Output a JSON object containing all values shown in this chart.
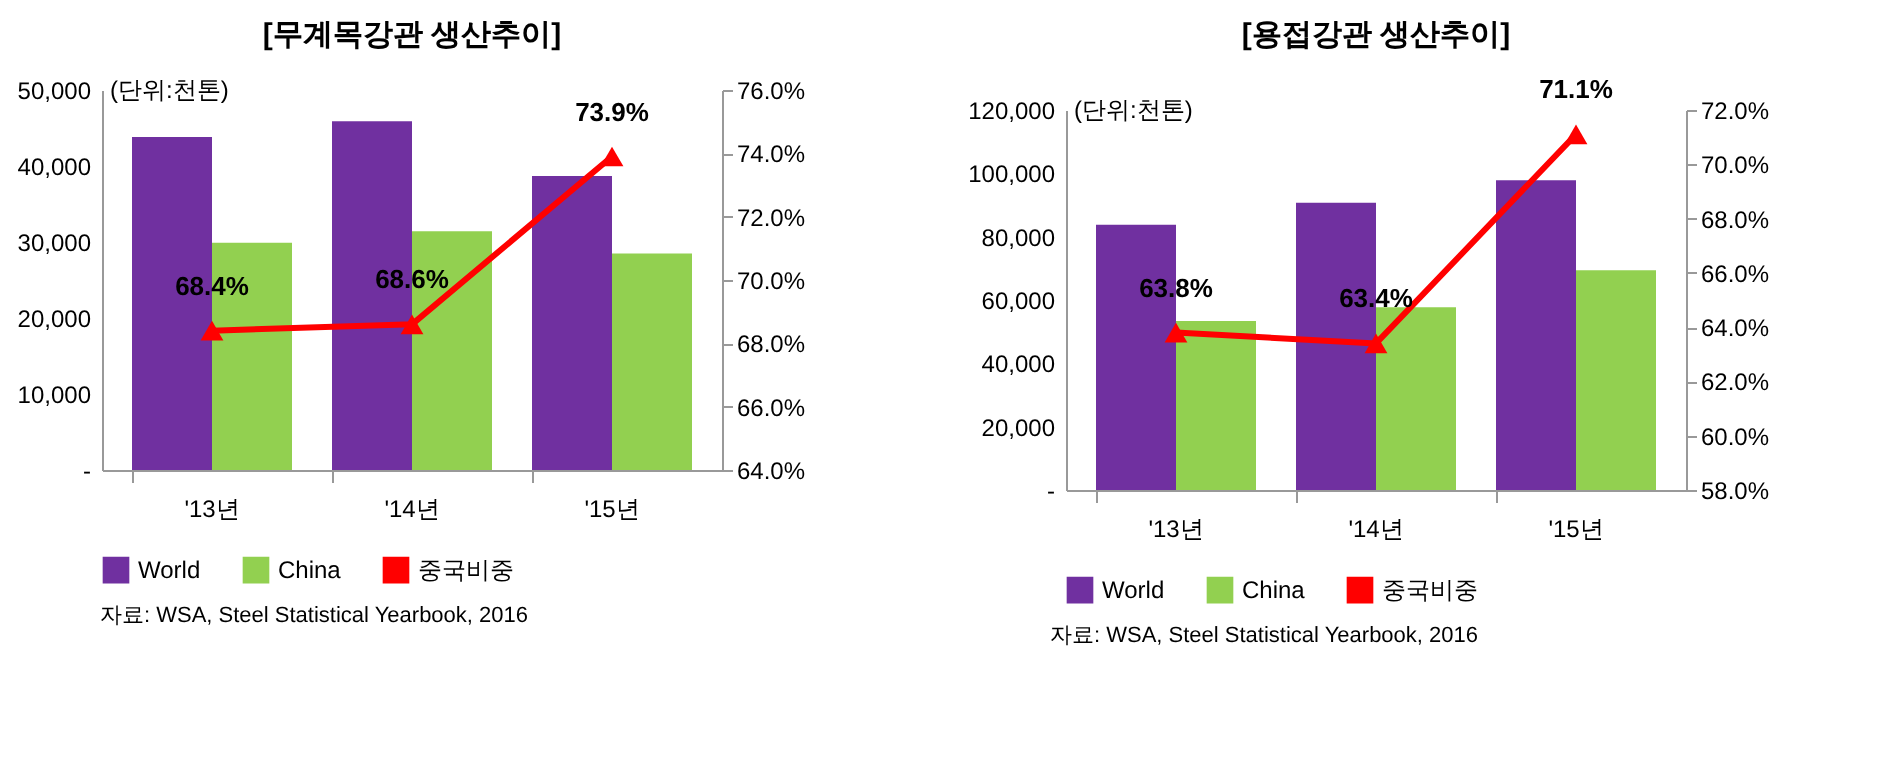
{
  "chart_data": [
    {
      "type": "bar",
      "title": "[무계목강관 생산추이]",
      "categories": [
        "'13년",
        "'14년",
        "'15년"
      ],
      "series": [
        {
          "name": "World",
          "color": "#7030a0",
          "values": [
            43800,
            45900,
            38700
          ]
        },
        {
          "name": "China",
          "color": "#92d050",
          "values": [
            29900,
            31400,
            28500
          ]
        },
        {
          "name": "중국비중",
          "type": "line",
          "axis": "y2",
          "color": "#ff0000",
          "values": [
            68.4,
            68.6,
            73.9
          ],
          "value_labels": [
            "68.4%",
            "68.6%",
            "73.9%"
          ]
        }
      ],
      "ylim": [
        0,
        50000
      ],
      "yticks": [
        {
          "value": 0,
          "label": "-"
        },
        {
          "value": 10000,
          "label": "10,000"
        },
        {
          "value": 20000,
          "label": "20,000"
        },
        {
          "value": 30000,
          "label": "30,000"
        },
        {
          "value": 40000,
          "label": "40,000"
        },
        {
          "value": 50000,
          "label": "50,000"
        }
      ],
      "y2lim": [
        64,
        76
      ],
      "y2ticks": [
        {
          "value": 64,
          "label": "64.0%"
        },
        {
          "value": 66,
          "label": "66.0%"
        },
        {
          "value": 68,
          "label": "68.0%"
        },
        {
          "value": 70,
          "label": "70.0%"
        },
        {
          "value": 72,
          "label": "72.0%"
        },
        {
          "value": 74,
          "label": "74.0%"
        },
        {
          "value": 76,
          "label": "76.0%"
        }
      ],
      "legend": "bottom",
      "marker": "triangle",
      "annotations": [
        "(단위:천톤)",
        "자료: WSA, Steel Statistical Yearbook, 2016"
      ]
    },
    {
      "type": "bar",
      "title": "[용접강관 생산추이]",
      "categories": [
        "'13년",
        "'14년",
        "'15년"
      ],
      "series": [
        {
          "name": "World",
          "color": "#7030a0",
          "values": [
            83800,
            90700,
            97800
          ]
        },
        {
          "name": "China",
          "color": "#92d050",
          "values": [
            53400,
            57700,
            69400
          ]
        },
        {
          "name": "중국비중",
          "type": "line",
          "axis": "y2",
          "color": "#ff0000",
          "values": [
            63.8,
            63.4,
            71.1
          ],
          "value_labels": [
            "63.8%",
            "63.4%",
            "71.1%"
          ]
        }
      ],
      "ylim": [
        0,
        120000
      ],
      "yticks": [
        {
          "value": 0,
          "label": "-"
        },
        {
          "value": 20000,
          "label": "20,000"
        },
        {
          "value": 40000,
          "label": "40,000"
        },
        {
          "value": 60000,
          "label": "60,000"
        },
        {
          "value": 80000,
          "label": "80,000"
        },
        {
          "value": 100000,
          "label": "100,000"
        },
        {
          "value": 120000,
          "label": "120,000"
        }
      ],
      "y2lim": [
        58,
        72
      ],
      "y2ticks": [
        {
          "value": 58,
          "label": "58.0%"
        },
        {
          "value": 60,
          "label": "60.0%"
        },
        {
          "value": 62,
          "label": "62.0%"
        },
        {
          "value": 64,
          "label": "64.0%"
        },
        {
          "value": 66,
          "label": "66.0%"
        },
        {
          "value": 68,
          "label": "68.0%"
        },
        {
          "value": 70,
          "label": "70.0%"
        },
        {
          "value": 72,
          "label": "72.0%"
        }
      ],
      "legend": "bottom",
      "marker": "triangle",
      "annotations": [
        "(단위:천톤)",
        "자료: WSA, Steel Statistical Yearbook, 2016"
      ]
    }
  ]
}
